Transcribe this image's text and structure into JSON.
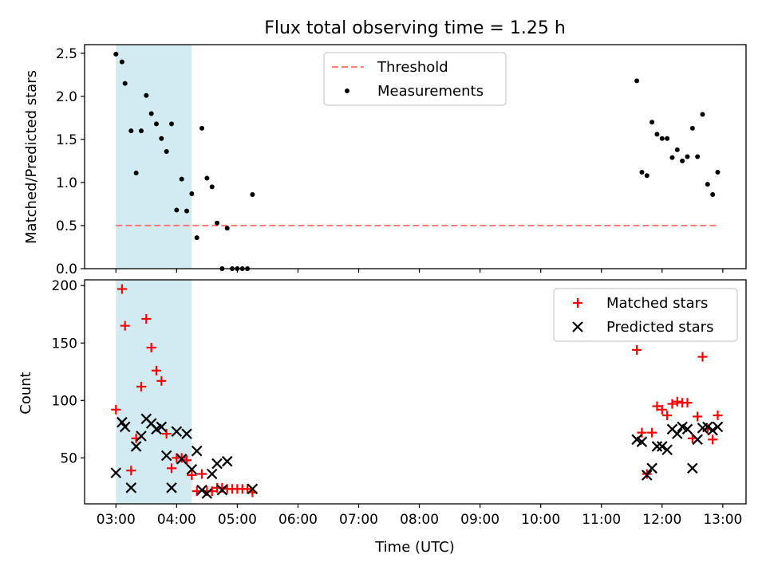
{
  "chart_data": [
    {
      "type": "scatter",
      "title": "Flux total observing time = 1.25 h",
      "xlabel": "",
      "ylabel": "Matched/Predicted stars",
      "xlim": [
        "02:29",
        "13:23"
      ],
      "ylim": [
        0,
        2.6
      ],
      "yticks": [
        "0.0",
        "0.5",
        "1.0",
        "1.5",
        "2.0",
        "2.5"
      ],
      "xticks": [
        "03:00",
        "04:00",
        "05:00",
        "06:00",
        "07:00",
        "08:00",
        "09:00",
        "10:00",
        "11:00",
        "12:00",
        "13:00"
      ],
      "show_xtick_labels": false,
      "grid": false,
      "highlight_span": {
        "from": "03:00",
        "to": "04:15",
        "color": "#add8e6"
      },
      "legend": {
        "position": "top-center",
        "entries": [
          "Threshold",
          "Measurements"
        ]
      },
      "threshold": {
        "name": "Threshold",
        "value": 0.5,
        "from": "03:00",
        "to": "12:55",
        "color": "#ff7f7f"
      },
      "series": [
        {
          "name": "Measurements",
          "color": "#000000",
          "points": [
            [
              "03:00",
              2.49
            ],
            [
              "03:06",
              2.4
            ],
            [
              "03:09",
              2.15
            ],
            [
              "03:15",
              1.6
            ],
            [
              "03:20",
              1.11
            ],
            [
              "03:25",
              1.6
            ],
            [
              "03:30",
              2.01
            ],
            [
              "03:35",
              1.8
            ],
            [
              "03:40",
              1.68
            ],
            [
              "03:45",
              1.51
            ],
            [
              "03:50",
              1.36
            ],
            [
              "03:55",
              1.68
            ],
            [
              "04:00",
              0.68
            ],
            [
              "04:05",
              1.04
            ],
            [
              "04:10",
              0.67
            ],
            [
              "04:15",
              0.87
            ],
            [
              "04:20",
              0.36
            ],
            [
              "04:25",
              1.63
            ],
            [
              "04:30",
              1.05
            ],
            [
              "04:35",
              0.95
            ],
            [
              "04:40",
              0.53
            ],
            [
              "04:45",
              0.0
            ],
            [
              "04:50",
              0.47
            ],
            [
              "04:55",
              0.0
            ],
            [
              "05:00",
              0.0
            ],
            [
              "05:05",
              0.0
            ],
            [
              "05:10",
              0.0
            ],
            [
              "05:15",
              0.86
            ],
            [
              "11:35",
              2.18
            ],
            [
              "11:40",
              1.12
            ],
            [
              "11:45",
              1.08
            ],
            [
              "11:50",
              1.7
            ],
            [
              "11:55",
              1.56
            ],
            [
              "12:00",
              1.51
            ],
            [
              "12:05",
              1.51
            ],
            [
              "12:10",
              1.29
            ],
            [
              "12:15",
              1.38
            ],
            [
              "12:20",
              1.25
            ],
            [
              "12:25",
              1.3
            ],
            [
              "12:30",
              1.63
            ],
            [
              "12:35",
              1.3
            ],
            [
              "12:40",
              1.79
            ],
            [
              "12:45",
              0.98
            ],
            [
              "12:50",
              0.86
            ],
            [
              "12:55",
              1.12
            ]
          ]
        }
      ]
    },
    {
      "type": "scatter",
      "title": "",
      "xlabel": "Time (UTC)",
      "ylabel": "Count",
      "xlim": [
        "02:29",
        "13:23"
      ],
      "ylim": [
        10,
        205
      ],
      "yticks": [
        "50",
        "100",
        "150",
        "200"
      ],
      "xticks": [
        "03:00",
        "04:00",
        "05:00",
        "06:00",
        "07:00",
        "08:00",
        "09:00",
        "10:00",
        "11:00",
        "12:00",
        "13:00"
      ],
      "show_xtick_labels": true,
      "grid": false,
      "highlight_span": {
        "from": "03:00",
        "to": "04:15",
        "color": "#add8e6"
      },
      "legend": {
        "position": "top-right",
        "entries": [
          "Matched stars",
          "Predicted stars"
        ]
      },
      "series": [
        {
          "name": "Matched stars",
          "marker": "plus",
          "color": "#ff0000",
          "points": [
            [
              "03:00",
              92
            ],
            [
              "03:06",
              197
            ],
            [
              "03:09",
              165
            ],
            [
              "03:15",
              39
            ],
            [
              "03:20",
              67
            ],
            [
              "03:25",
              112
            ],
            [
              "03:30",
              171
            ],
            [
              "03:35",
              146
            ],
            [
              "03:40",
              126
            ],
            [
              "03:45",
              117
            ],
            [
              "03:50",
              71
            ],
            [
              "03:55",
              41
            ],
            [
              "04:00",
              50
            ],
            [
              "04:05",
              50
            ],
            [
              "04:10",
              48
            ],
            [
              "04:15",
              35
            ],
            [
              "04:20",
              21
            ],
            [
              "04:25",
              36
            ],
            [
              "04:30",
              21
            ],
            [
              "04:35",
              21
            ],
            [
              "04:40",
              24
            ],
            [
              "04:45",
              24
            ],
            [
              "04:50",
              23
            ],
            [
              "04:55",
              23
            ],
            [
              "05:00",
              23
            ],
            [
              "05:05",
              23
            ],
            [
              "05:10",
              23
            ],
            [
              "05:15",
              20
            ],
            [
              "11:35",
              144
            ],
            [
              "11:40",
              72
            ],
            [
              "11:45",
              36
            ],
            [
              "11:50",
              72
            ],
            [
              "11:55",
              95
            ],
            [
              "12:00",
              92
            ],
            [
              "12:05",
              87
            ],
            [
              "12:10",
              97
            ],
            [
              "12:15",
              99
            ],
            [
              "12:20",
              98
            ],
            [
              "12:25",
              98
            ],
            [
              "12:30",
              67
            ],
            [
              "12:35",
              86
            ],
            [
              "12:40",
              138
            ],
            [
              "12:45",
              75
            ],
            [
              "12:50",
              66
            ],
            [
              "12:55",
              87
            ]
          ]
        },
        {
          "name": "Predicted stars",
          "marker": "x",
          "color": "#000000",
          "points": [
            [
              "03:00",
              37
            ],
            [
              "03:06",
              81
            ],
            [
              "03:09",
              77
            ],
            [
              "03:15",
              24
            ],
            [
              "03:20",
              60
            ],
            [
              "03:25",
              69
            ],
            [
              "03:30",
              84
            ],
            [
              "03:35",
              80
            ],
            [
              "03:40",
              75
            ],
            [
              "03:45",
              77
            ],
            [
              "03:50",
              52
            ],
            [
              "03:55",
              24
            ],
            [
              "04:00",
              73
            ],
            [
              "04:05",
              49
            ],
            [
              "04:10",
              71
            ],
            [
              "04:15",
              40
            ],
            [
              "04:20",
              56
            ],
            [
              "04:25",
              22
            ],
            [
              "04:30",
              19
            ],
            [
              "04:35",
              36
            ],
            [
              "04:40",
              45
            ],
            [
              "04:45",
              22
            ],
            [
              "04:50",
              47
            ],
            [
              "05:15",
              23
            ],
            [
              "11:35",
              66
            ],
            [
              "11:40",
              64
            ],
            [
              "11:45",
              35
            ],
            [
              "11:50",
              41
            ],
            [
              "11:55",
              60
            ],
            [
              "12:00",
              60
            ],
            [
              "12:05",
              57
            ],
            [
              "12:10",
              75
            ],
            [
              "12:15",
              71
            ],
            [
              "12:20",
              77
            ],
            [
              "12:25",
              75
            ],
            [
              "12:30",
              41
            ],
            [
              "12:35",
              66
            ],
            [
              "12:40",
              76
            ],
            [
              "12:45",
              77
            ],
            [
              "12:50",
              74
            ],
            [
              "12:55",
              77
            ]
          ]
        }
      ]
    }
  ]
}
